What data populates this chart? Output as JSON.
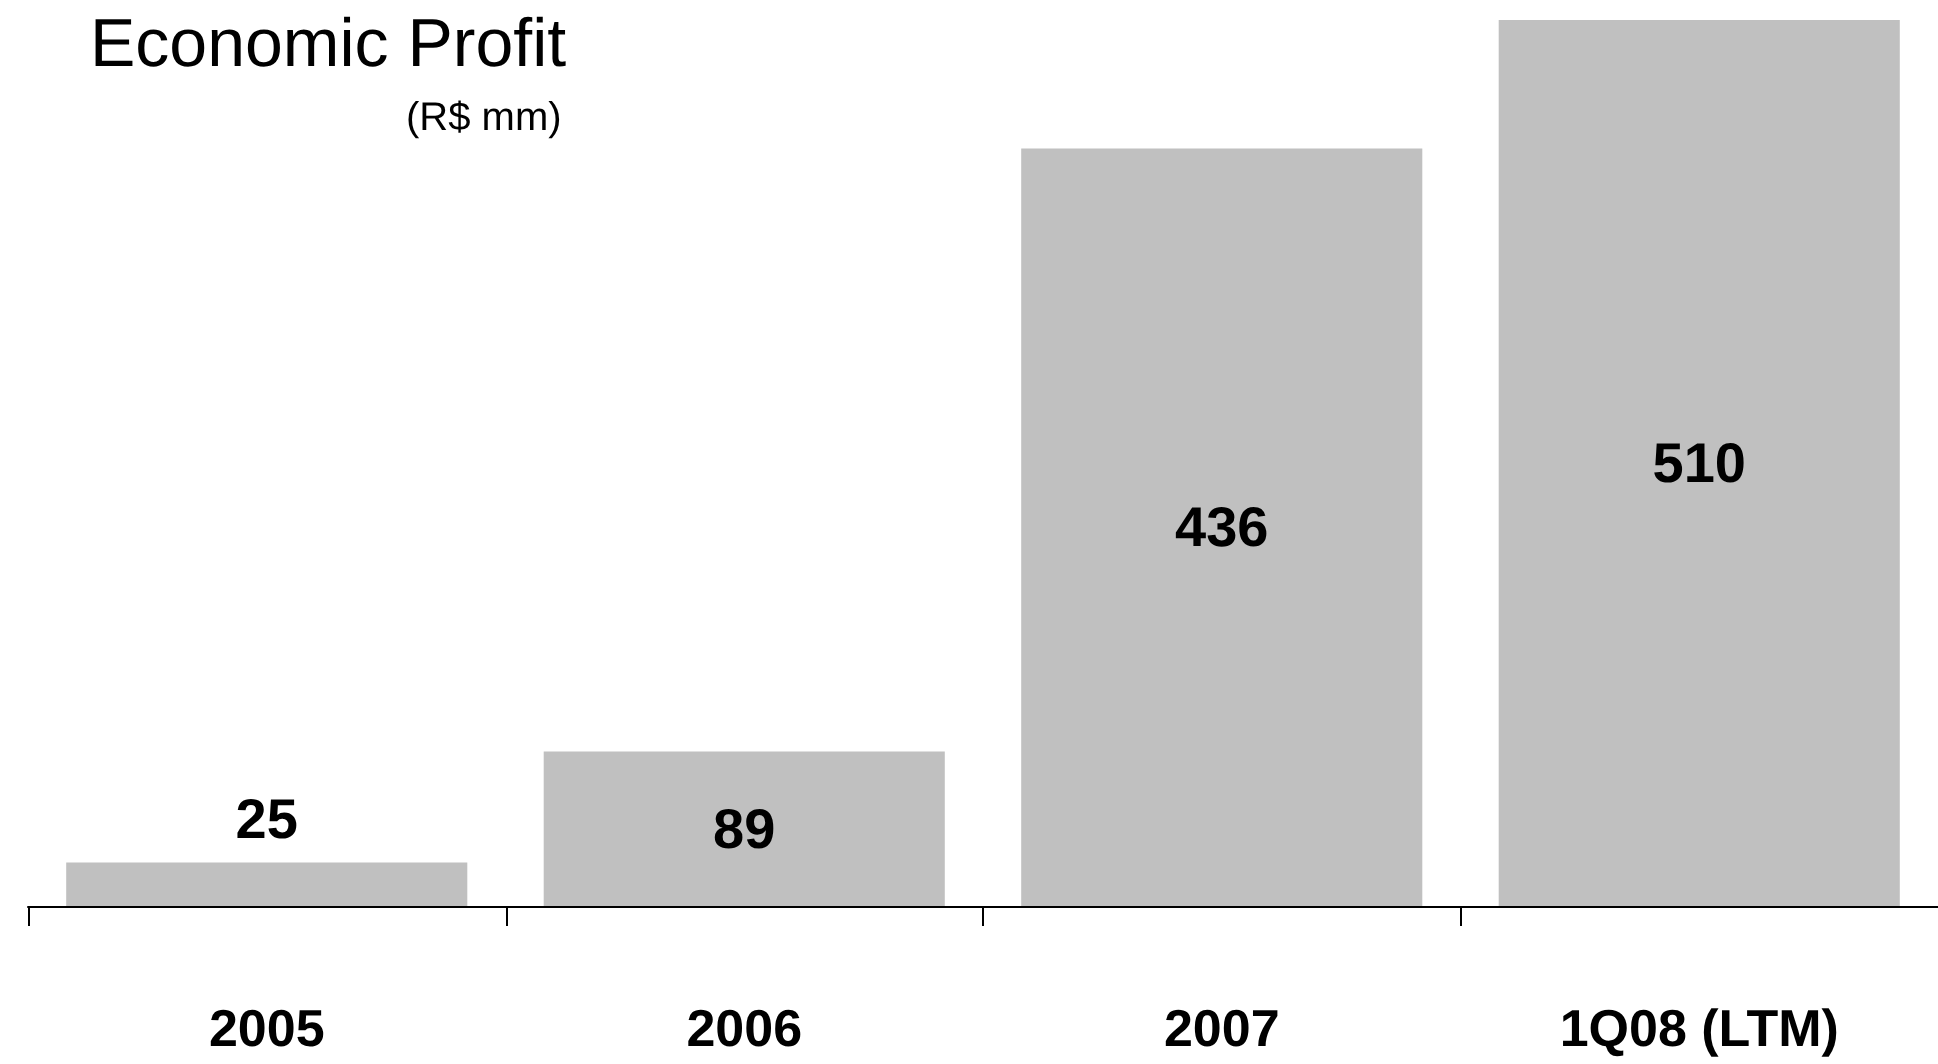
{
  "chart_data": {
    "type": "bar",
    "title": "Economic Profit",
    "subtitle": "(R$ mm)",
    "categories": [
      "2005",
      "2006",
      "2007",
      "1Q08 (LTM)"
    ],
    "values": [
      25,
      89,
      436,
      510
    ],
    "color": "#c0c0c0",
    "data_labels": true
  }
}
